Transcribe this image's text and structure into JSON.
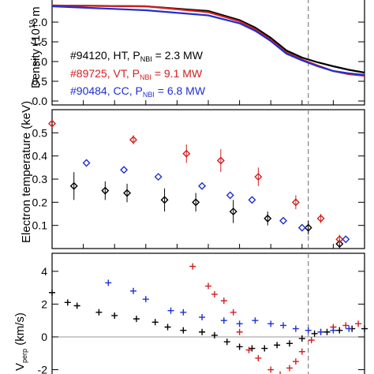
{
  "colors": {
    "black": "#000000",
    "red": "#d21f1f",
    "blue": "#1f2fd2",
    "ref_line": "#808080"
  },
  "chart_data": [
    {
      "type": "line",
      "ylabel": "Density (10",
      "ylabel_unit": "19",
      "ylabel_tail": " m",
      "ylim": [
        -0.1,
        2.6
      ],
      "yticks": [
        "0.0",
        "0.5",
        "1.0",
        "1.5",
        "2.0"
      ],
      "ytick_values": [
        0.0,
        0.5,
        1.0,
        1.5,
        2.0
      ],
      "xlim": [
        0.0,
        1.0
      ],
      "legend": [
        {
          "text": "#94120, HT, P",
          "sub": "NBI",
          "tail": " = 2.3 MW",
          "color": "#000000"
        },
        {
          "text": "#89725, VT, P",
          "sub": "NBI",
          "tail": " = 9.1 MW",
          "color": "#d21f1f"
        },
        {
          "text": "#90484, CC, P",
          "sub": "NBI",
          "tail": " = 6.8 MW",
          "color": "#1f2fd2"
        }
      ],
      "series": [
        {
          "name": "#94120",
          "color": "#000000",
          "x": [
            0.0,
            0.3,
            0.5,
            0.6,
            0.65,
            0.7,
            0.75,
            0.8,
            0.85,
            0.9,
            0.95,
            1.0
          ],
          "y": [
            2.42,
            2.4,
            2.28,
            2.05,
            1.86,
            1.6,
            1.28,
            1.1,
            0.98,
            0.88,
            0.79,
            0.72
          ]
        },
        {
          "name": "#89725",
          "color": "#d21f1f",
          "x": [
            0.0,
            0.3,
            0.5,
            0.6,
            0.65,
            0.7,
            0.75,
            0.8,
            0.85,
            0.9,
            0.95,
            1.0
          ],
          "y": [
            2.42,
            2.4,
            2.25,
            2.02,
            1.82,
            1.55,
            1.23,
            1.05,
            0.9,
            0.76,
            0.68,
            0.64
          ]
        },
        {
          "name": "#90484",
          "color": "#1f2fd2",
          "x": [
            0.0,
            0.3,
            0.5,
            0.6,
            0.65,
            0.7,
            0.75,
            0.8,
            0.85,
            0.9,
            0.95,
            1.0
          ],
          "y": [
            2.4,
            2.3,
            2.17,
            1.97,
            1.78,
            1.52,
            1.2,
            1.03,
            0.88,
            0.76,
            0.7,
            0.66
          ]
        }
      ]
    },
    {
      "type": "scatter",
      "ylabel": "Electron temperature (keV)",
      "ylim": [
        0.0,
        0.6
      ],
      "yticks": [
        "0.1",
        "0.2",
        "0.3",
        "0.4",
        "0.5"
      ],
      "ytick_values": [
        0.1,
        0.2,
        0.3,
        0.4,
        0.5
      ],
      "xlim": [
        0.0,
        1.0
      ],
      "series": [
        {
          "name": "#94120",
          "color": "#000000",
          "x": [
            0.07,
            0.17,
            0.24,
            0.36,
            0.46,
            0.58,
            0.69,
            0.82,
            0.92
          ],
          "y": [
            0.27,
            0.25,
            0.24,
            0.21,
            0.2,
            0.16,
            0.13,
            0.09,
            0.02
          ],
          "err": [
            0.06,
            0.04,
            0.04,
            0.05,
            0.04,
            0.05,
            0.03,
            0.03,
            0.02
          ]
        },
        {
          "name": "#89725",
          "color": "#d21f1f",
          "x": [
            0.0,
            0.26,
            0.43,
            0.54,
            0.66,
            0.78,
            0.86,
            0.92
          ],
          "y": [
            0.54,
            0.47,
            0.41,
            0.38,
            0.31,
            0.2,
            0.13,
            0.04
          ],
          "err": [
            0.0,
            0.02,
            0.04,
            0.05,
            0.04,
            0.03,
            0.02,
            0.02
          ]
        },
        {
          "name": "#90484",
          "color": "#1f2fd2",
          "x": [
            0.11,
            0.23,
            0.34,
            0.48,
            0.57,
            0.64,
            0.74,
            0.8,
            0.94
          ],
          "y": [
            0.37,
            0.34,
            0.31,
            0.27,
            0.23,
            0.21,
            0.12,
            0.09,
            0.04
          ],
          "err": [
            0.0,
            0.0,
            0.0,
            0.0,
            0.0,
            0.0,
            0.0,
            0.0,
            0.0
          ]
        }
      ]
    },
    {
      "type": "scatter",
      "ylabel": "V",
      "ylabel_sub": "perp",
      "ylabel_tail": " (km/s)",
      "ylim": [
        -2.6,
        5.1
      ],
      "yticks": [
        "-2",
        "0",
        "2",
        "4"
      ],
      "ytick_values": [
        -2,
        0,
        2,
        4
      ],
      "xlim": [
        0.0,
        1.0
      ],
      "series": [
        {
          "name": "#94120",
          "color": "#000000",
          "x": [
            0.0,
            0.05,
            0.08,
            0.15,
            0.2,
            0.27,
            0.33,
            0.37,
            0.42,
            0.48,
            0.52,
            0.56,
            0.6,
            0.64,
            0.68,
            0.72,
            0.76,
            0.8,
            0.84,
            0.88,
            0.92,
            0.96,
            1.0
          ],
          "y": [
            2.7,
            2.1,
            1.9,
            1.5,
            1.3,
            1.1,
            0.9,
            0.6,
            0.4,
            0.3,
            0.1,
            -0.3,
            -0.6,
            -0.7,
            -0.7,
            -0.5,
            -0.4,
            -0.1,
            0.2,
            0.3,
            0.4,
            0.5,
            0.5
          ]
        },
        {
          "name": "#89725",
          "color": "#d21f1f",
          "x": [
            0.45,
            0.5,
            0.52,
            0.55,
            0.58,
            0.6,
            0.63,
            0.66,
            0.7,
            0.73,
            0.76,
            0.78,
            0.8,
            0.83,
            0.86,
            0.9,
            0.94,
            0.98
          ],
          "y": [
            4.3,
            3.1,
            2.6,
            2.2,
            1.5,
            0.3,
            -0.8,
            -1.3,
            -2.0,
            -2.3,
            -1.9,
            -1.5,
            -0.9,
            -0.2,
            0.3,
            0.6,
            0.7,
            0.8
          ]
        },
        {
          "name": "#90484",
          "color": "#1f2fd2",
          "x": [
            0.18,
            0.26,
            0.3,
            0.38,
            0.42,
            0.48,
            0.55,
            0.6,
            0.65,
            0.7,
            0.74,
            0.78,
            0.82,
            0.86,
            0.9,
            0.95
          ],
          "y": [
            3.3,
            2.8,
            2.3,
            1.6,
            1.5,
            1.2,
            1.0,
            0.8,
            1.0,
            0.8,
            0.7,
            0.5,
            0.4,
            0.3,
            0.4,
            0.5
          ]
        }
      ]
    }
  ]
}
